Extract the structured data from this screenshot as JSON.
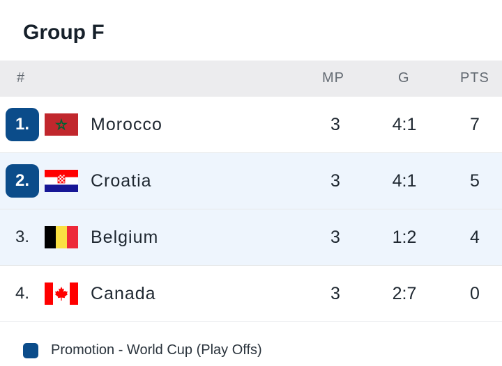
{
  "group_title": "Group F",
  "columns": {
    "rank": "#",
    "mp": "MP",
    "g": "G",
    "pts": "PTS"
  },
  "colors": {
    "promotion": "#0b4c8a",
    "highlight_row": "#eef5fd"
  },
  "rows": [
    {
      "rank": "1.",
      "team": "Morocco",
      "flag": "morocco-flag",
      "mp": "3",
      "g": "4:1",
      "pts": "7",
      "promotion": true
    },
    {
      "rank": "2.",
      "team": "Croatia",
      "flag": "croatia-flag",
      "mp": "3",
      "g": "4:1",
      "pts": "5",
      "promotion": true
    },
    {
      "rank": "3.",
      "team": "Belgium",
      "flag": "belgium-flag",
      "mp": "3",
      "g": "1:2",
      "pts": "4",
      "promotion": false
    },
    {
      "rank": "4.",
      "team": "Canada",
      "flag": "canada-flag",
      "mp": "3",
      "g": "2:7",
      "pts": "0",
      "promotion": false
    }
  ],
  "legend": {
    "label": "Promotion - World Cup (Play Offs)"
  }
}
